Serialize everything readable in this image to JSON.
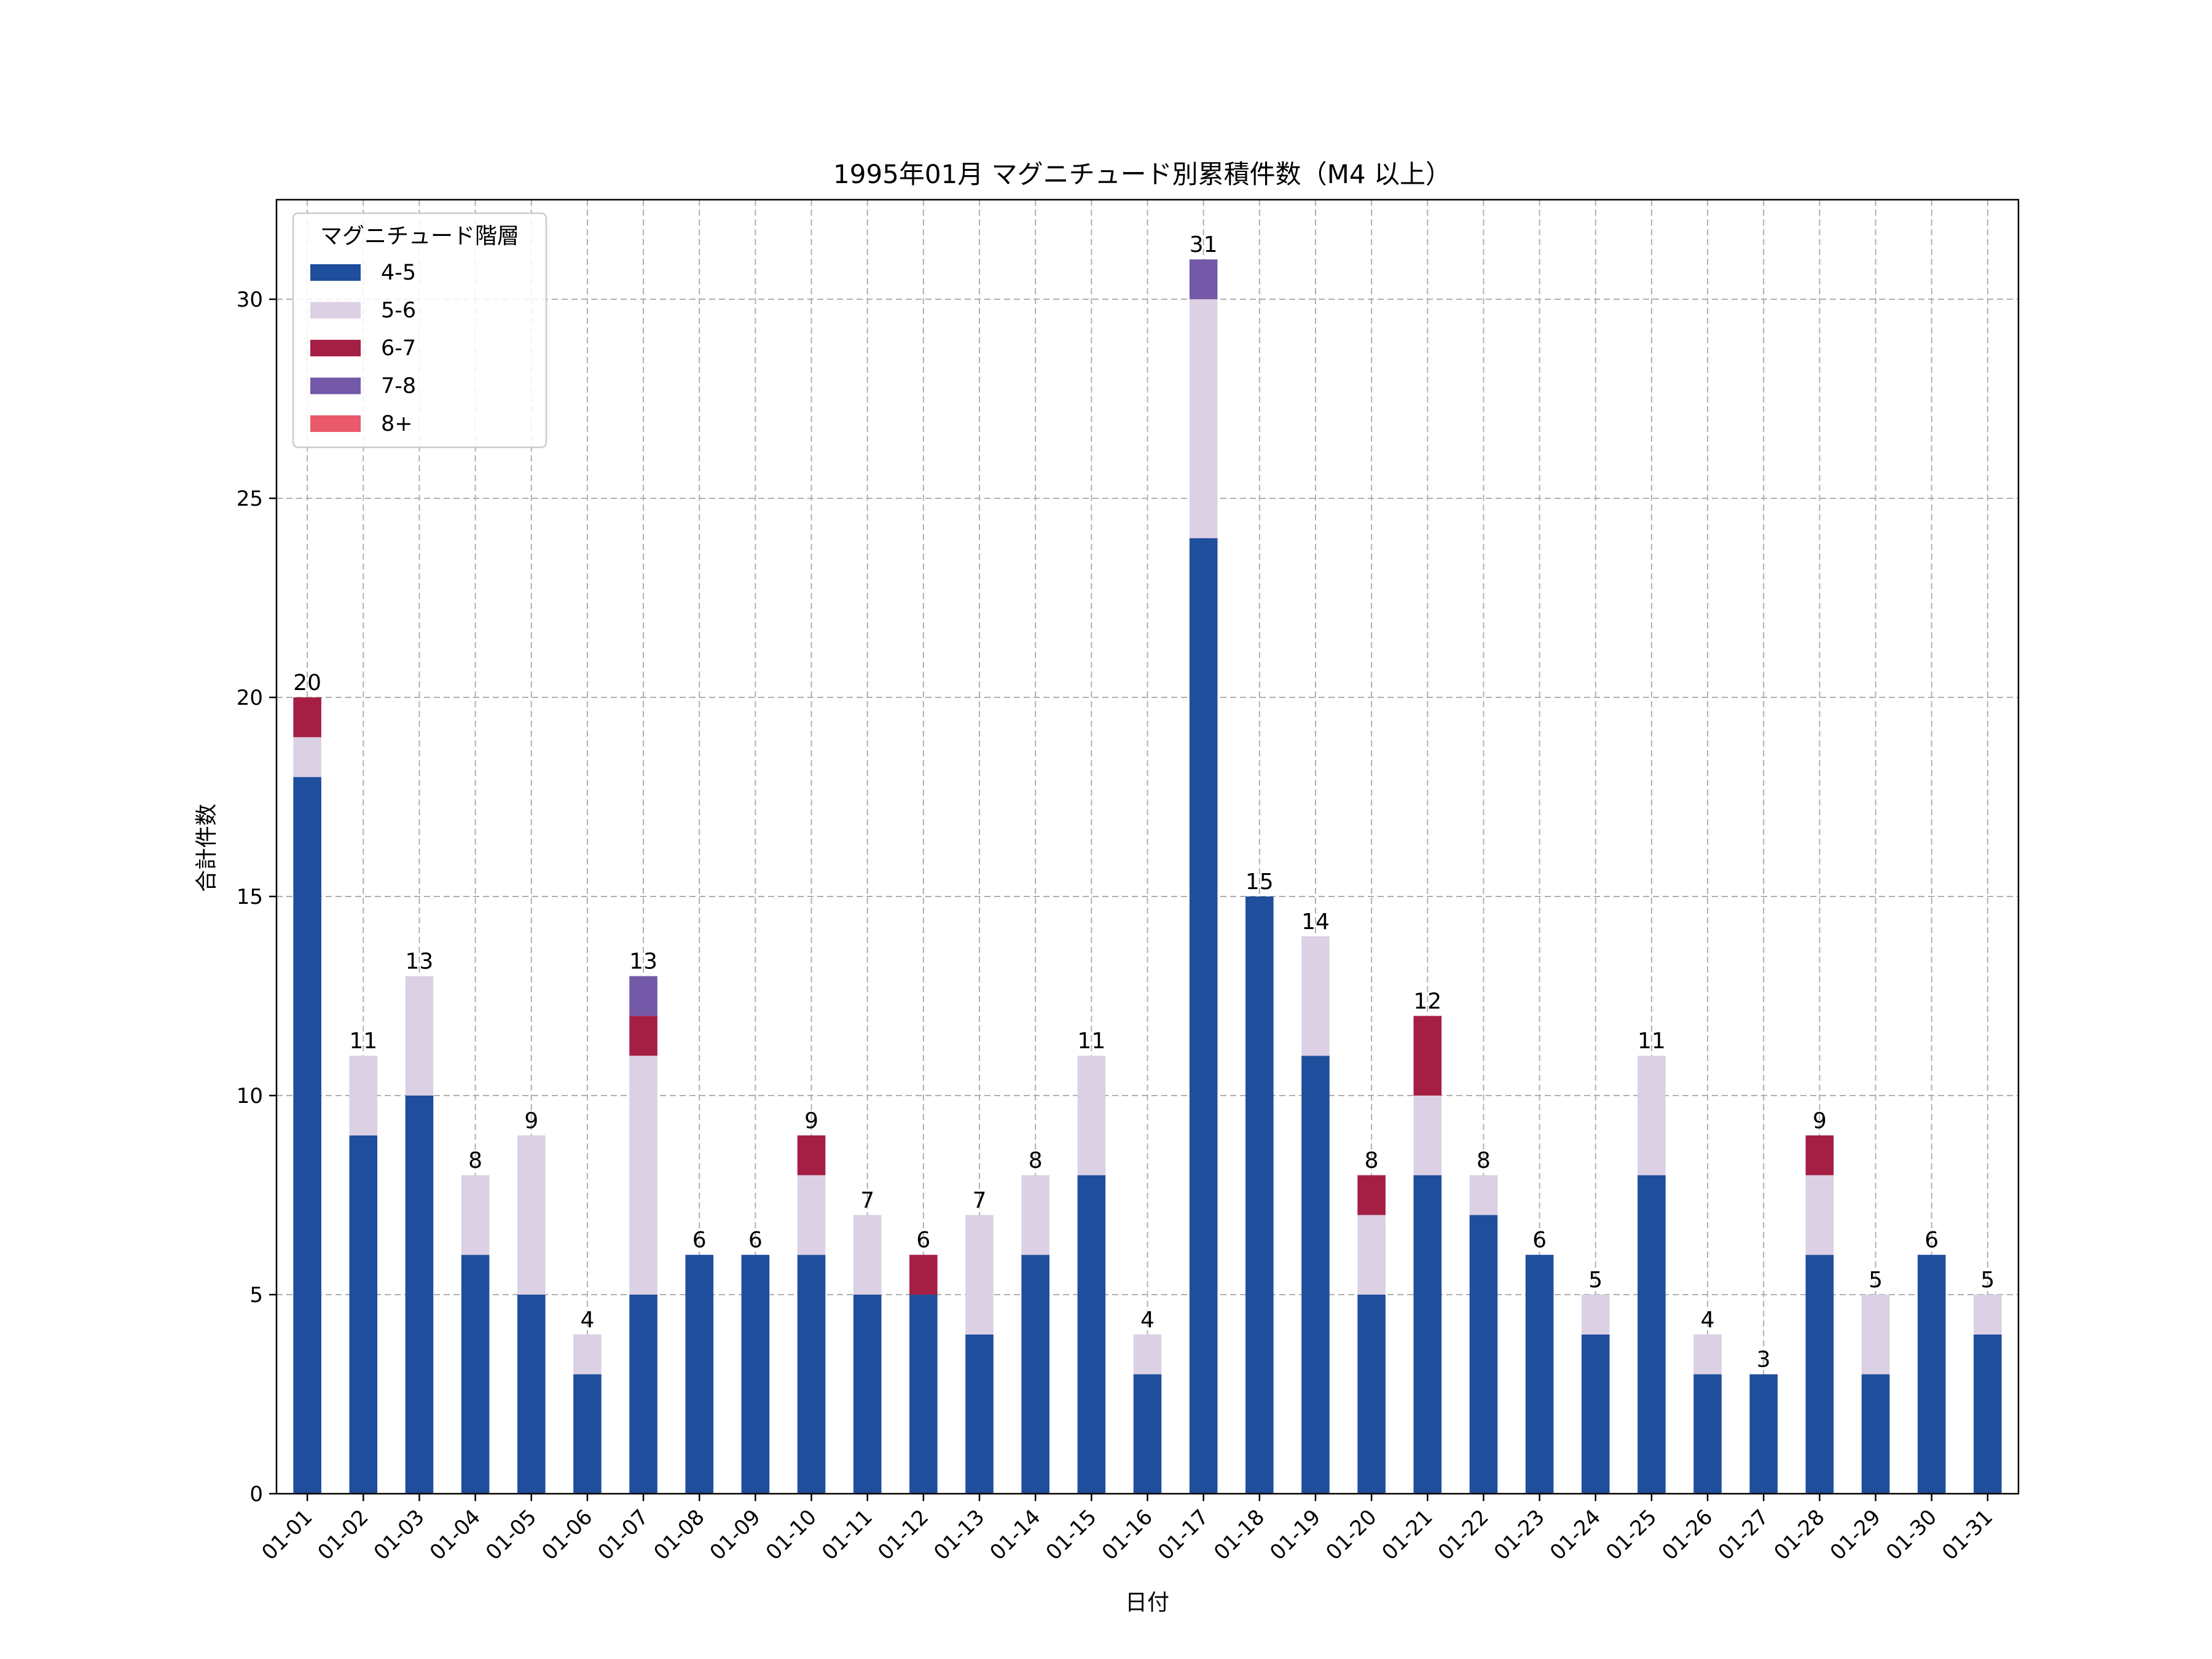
{
  "chart_data": {
    "type": "bar",
    "stacked": true,
    "title": "1995年01月 マグニチュード別累積件数（M4 以上）",
    "xlabel": "日付",
    "ylabel": "合計件数",
    "ylim": [
      0,
      32.5
    ],
    "yticks": [
      0,
      5,
      10,
      15,
      20,
      25,
      30
    ],
    "grid": true,
    "legend_title": "マグニチュード階層",
    "legend_position": "top-left",
    "categories": [
      "01-01",
      "01-02",
      "01-03",
      "01-04",
      "01-05",
      "01-06",
      "01-07",
      "01-08",
      "01-09",
      "01-10",
      "01-11",
      "01-12",
      "01-13",
      "01-14",
      "01-15",
      "01-16",
      "01-17",
      "01-18",
      "01-19",
      "01-20",
      "01-21",
      "01-22",
      "01-23",
      "01-24",
      "01-25",
      "01-26",
      "01-27",
      "01-28",
      "01-29",
      "01-30",
      "01-31"
    ],
    "series": [
      {
        "name": "4-5",
        "color": "#1f4e9c",
        "values": [
          18,
          9,
          10,
          6,
          5,
          3,
          5,
          6,
          6,
          6,
          5,
          5,
          4,
          6,
          8,
          3,
          24,
          15,
          11,
          5,
          8,
          7,
          6,
          4,
          8,
          3,
          3,
          6,
          3,
          6,
          4
        ]
      },
      {
        "name": "5-6",
        "color": "#dcd0e4",
        "values": [
          1,
          2,
          3,
          2,
          4,
          1,
          6,
          0,
          0,
          2,
          2,
          0,
          3,
          2,
          3,
          1,
          6,
          0,
          3,
          2,
          2,
          1,
          0,
          1,
          3,
          1,
          0,
          2,
          2,
          0,
          1
        ]
      },
      {
        "name": "6-7",
        "color": "#a51f45",
        "values": [
          1,
          0,
          0,
          0,
          0,
          0,
          1,
          0,
          0,
          1,
          0,
          1,
          0,
          0,
          0,
          0,
          0,
          0,
          0,
          1,
          2,
          0,
          0,
          0,
          0,
          0,
          0,
          1,
          0,
          0,
          0
        ]
      },
      {
        "name": "7-8",
        "color": "#7359a8",
        "values": [
          0,
          0,
          0,
          0,
          0,
          0,
          1,
          0,
          0,
          0,
          0,
          0,
          0,
          0,
          0,
          0,
          1,
          0,
          0,
          0,
          0,
          0,
          0,
          0,
          0,
          0,
          0,
          0,
          0,
          0,
          0
        ]
      },
      {
        "name": "8+",
        "color": "#ea5a6a",
        "values": [
          0,
          0,
          0,
          0,
          0,
          0,
          0,
          0,
          0,
          0,
          0,
          0,
          0,
          0,
          0,
          0,
          0,
          0,
          0,
          0,
          0,
          0,
          0,
          0,
          0,
          0,
          0,
          0,
          0,
          0,
          0
        ]
      }
    ],
    "totals": [
      20,
      11,
      13,
      8,
      9,
      4,
      13,
      6,
      6,
      9,
      7,
      6,
      7,
      8,
      11,
      4,
      31,
      15,
      14,
      8,
      12,
      8,
      6,
      5,
      11,
      4,
      3,
      9,
      5,
      6,
      5
    ]
  }
}
